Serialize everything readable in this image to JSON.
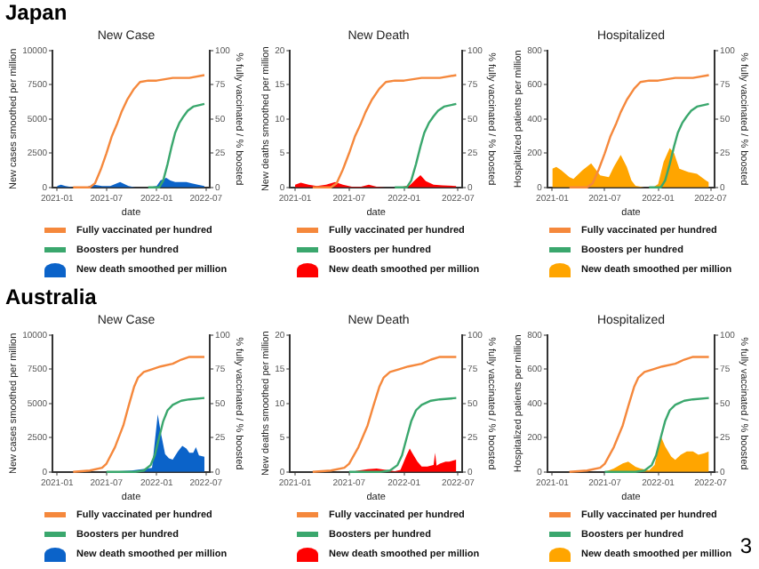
{
  "chart_data": [
    {
      "type": "area",
      "title": "New Case",
      "xlabel": "date",
      "ylabel": "New cases smoothed per million",
      "y2label": "% fully vaccinated / % boosted",
      "annotations": [
        "Japan"
      ],
      "xlim": [
        "2020-12-15",
        "2022-07-15"
      ],
      "xticks": [
        "2021-01",
        "2021-07",
        "2022-01",
        "2022-07"
      ],
      "ylim": [
        0,
        10000
      ],
      "yticks": [
        0,
        2500,
        5000,
        7500,
        10000
      ],
      "y2lim": [
        0,
        100
      ],
      "y2ticks": [
        0,
        25,
        50,
        75,
        100
      ],
      "legend": "bottom",
      "marker": "none",
      "series": [
        {
          "name": "Fully vaccinated per hundred",
          "type": "line",
          "axis": "y2",
          "color": "#f5883c",
          "x": [
            "2021-03-01",
            "2021-05-01",
            "2021-05-20",
            "2021-06-10",
            "2021-07-01",
            "2021-07-20",
            "2021-08-10",
            "2021-08-25",
            "2021-09-15",
            "2021-10-10",
            "2021-11-01",
            "2021-12-01",
            "2022-01-01",
            "2022-03-01",
            "2022-05-01",
            "2022-06-25"
          ],
          "values": [
            0,
            0,
            3,
            13,
            25,
            37,
            47,
            55,
            64,
            72,
            77,
            78,
            78,
            80,
            80,
            82
          ]
        },
        {
          "name": "Boosters per hundred",
          "type": "line",
          "axis": "y2",
          "color": "#3aa76d",
          "x": [
            "2021-12-01",
            "2022-01-10",
            "2022-01-25",
            "2022-02-10",
            "2022-02-25",
            "2022-03-10",
            "2022-03-25",
            "2022-04-10",
            "2022-04-25",
            "2022-05-15",
            "2022-06-25"
          ],
          "values": [
            0,
            0,
            5,
            17,
            30,
            40,
            47,
            52,
            56,
            59,
            61
          ]
        },
        {
          "name": "New death smoothed per million",
          "color": "#0b63c9",
          "x": [
            "2021-01-01",
            "2021-01-15",
            "2021-02-01",
            "2021-03-01",
            "2021-04-15",
            "2021-05-15",
            "2021-06-15",
            "2021-07-15",
            "2021-08-20",
            "2021-09-20",
            "2021-10-15",
            "2021-12-01",
            "2022-01-01",
            "2022-01-15",
            "2022-02-05",
            "2022-02-20",
            "2022-03-10",
            "2022-04-01",
            "2022-04-20",
            "2022-05-10",
            "2022-06-01",
            "2022-06-25"
          ],
          "values": [
            100,
            200,
            100,
            0,
            0,
            200,
            100,
            100,
            400,
            100,
            0,
            0,
            100,
            500,
            700,
            500,
            400,
            400,
            400,
            300,
            200,
            100
          ]
        }
      ]
    },
    {
      "type": "area",
      "title": "New Death",
      "xlabel": "date",
      "ylabel": "New deaths smoothed per million",
      "y2label": "% fully vaccinated / % boosted",
      "xlim": [
        "2020-12-15",
        "2022-07-15"
      ],
      "xticks": [
        "2021-01",
        "2021-07",
        "2022-01",
        "2022-07"
      ],
      "ylim": [
        0,
        20
      ],
      "yticks": [
        0,
        5,
        10,
        15,
        20
      ],
      "y2lim": [
        0,
        100
      ],
      "y2ticks": [
        0,
        25,
        50,
        75,
        100
      ],
      "legend": "bottom",
      "marker": "none",
      "series": [
        {
          "name": "Fully vaccinated per hundred",
          "type": "line",
          "axis": "y2",
          "color": "#f5883c",
          "x": [
            "2021-03-01",
            "2021-05-01",
            "2021-05-20",
            "2021-06-10",
            "2021-07-01",
            "2021-07-20",
            "2021-08-10",
            "2021-08-25",
            "2021-09-15",
            "2021-10-10",
            "2021-11-01",
            "2021-12-01",
            "2022-01-01",
            "2022-03-01",
            "2022-05-01",
            "2022-06-25"
          ],
          "values": [
            0,
            0,
            3,
            13,
            25,
            37,
            47,
            55,
            64,
            72,
            77,
            78,
            78,
            80,
            80,
            82
          ]
        },
        {
          "name": "Boosters per hundred",
          "type": "line",
          "axis": "y2",
          "color": "#3aa76d",
          "x": [
            "2021-12-01",
            "2022-01-10",
            "2022-01-25",
            "2022-02-10",
            "2022-02-25",
            "2022-03-10",
            "2022-03-25",
            "2022-04-10",
            "2022-04-25",
            "2022-05-15",
            "2022-06-25"
          ],
          "values": [
            0,
            0,
            5,
            17,
            30,
            40,
            47,
            52,
            56,
            59,
            61
          ]
        },
        {
          "name": "New death smoothed per million",
          "color": "#ff0000",
          "x": [
            "2021-01-01",
            "2021-01-20",
            "2021-02-15",
            "2021-03-15",
            "2021-04-15",
            "2021-05-15",
            "2021-06-10",
            "2021-07-10",
            "2021-08-10",
            "2021-09-05",
            "2021-10-01",
            "2021-11-01",
            "2021-12-15",
            "2022-01-20",
            "2022-02-10",
            "2022-02-25",
            "2022-03-15",
            "2022-04-10",
            "2022-05-10",
            "2022-06-25"
          ],
          "values": [
            0.4,
            0.7,
            0.4,
            0.2,
            0.4,
            0.8,
            0.4,
            0.1,
            0.1,
            0.4,
            0.1,
            0,
            0,
            0.3,
            1.2,
            1.8,
            0.9,
            0.4,
            0.3,
            0.2
          ]
        }
      ]
    },
    {
      "type": "area",
      "title": "Hospitalized",
      "xlabel": "date",
      "ylabel": "Hospitalized patients per million",
      "y2label": "% fully vaccinated / % boosted",
      "xlim": [
        "2020-12-15",
        "2022-07-15"
      ],
      "xticks": [
        "2021-01",
        "2021-07",
        "2022-01",
        "2022-07"
      ],
      "ylim": [
        0,
        800
      ],
      "yticks": [
        0,
        200,
        400,
        600,
        800
      ],
      "y2lim": [
        0,
        100
      ],
      "y2ticks": [
        0,
        25,
        50,
        75,
        100
      ],
      "legend": "bottom",
      "marker": "none",
      "series": [
        {
          "name": "Fully vaccinated per hundred",
          "type": "line",
          "axis": "y2",
          "color": "#f5883c",
          "x": [
            "2021-03-01",
            "2021-05-01",
            "2021-05-20",
            "2021-06-10",
            "2021-07-01",
            "2021-07-20",
            "2021-08-10",
            "2021-08-25",
            "2021-09-15",
            "2021-10-10",
            "2021-11-01",
            "2021-12-01",
            "2022-01-01",
            "2022-03-01",
            "2022-05-01",
            "2022-06-25"
          ],
          "values": [
            0,
            0,
            3,
            13,
            25,
            37,
            47,
            55,
            64,
            72,
            77,
            78,
            78,
            80,
            80,
            82
          ]
        },
        {
          "name": "Boosters per hundred",
          "type": "line",
          "axis": "y2",
          "color": "#3aa76d",
          "x": [
            "2021-12-01",
            "2022-01-10",
            "2022-01-25",
            "2022-02-10",
            "2022-02-25",
            "2022-03-10",
            "2022-03-25",
            "2022-04-10",
            "2022-04-25",
            "2022-05-15",
            "2022-06-25"
          ],
          "values": [
            0,
            0,
            5,
            17,
            30,
            40,
            47,
            52,
            56,
            59,
            61
          ]
        },
        {
          "name": "New death smoothed per million",
          "color": "#ffa500",
          "x": [
            "2021-01-01",
            "2021-01-15",
            "2021-02-01",
            "2021-03-01",
            "2021-03-15",
            "2021-04-15",
            "2021-05-15",
            "2021-06-15",
            "2021-07-15",
            "2021-08-01",
            "2021-08-25",
            "2021-09-15",
            "2021-10-01",
            "2021-10-15",
            "2021-11-15",
            "2021-12-15",
            "2022-01-01",
            "2022-01-20",
            "2022-02-10",
            "2022-02-25",
            "2022-03-15",
            "2022-04-15",
            "2022-05-15",
            "2022-06-15",
            "2022-06-25"
          ],
          "values": [
            110,
            120,
            100,
            60,
            50,
            100,
            140,
            70,
            60,
            120,
            190,
            120,
            40,
            10,
            0,
            0,
            20,
            150,
            230,
            200,
            110,
            90,
            80,
            40,
            30
          ]
        }
      ]
    },
    {
      "type": "area",
      "title": "New Case",
      "xlabel": "date",
      "ylabel": "New cases smoothed per million",
      "y2label": "% fully vaccinated / % boosted",
      "annotations": [
        "Australia"
      ],
      "xlim": [
        "2020-12-15",
        "2022-07-15"
      ],
      "xticks": [
        "2021-01",
        "2021-07",
        "2022-01",
        "2022-07"
      ],
      "ylim": [
        0,
        10000
      ],
      "yticks": [
        0,
        2500,
        5000,
        7500,
        10000
      ],
      "y2lim": [
        0,
        100
      ],
      "y2ticks": [
        0,
        25,
        50,
        75,
        100
      ],
      "legend": "bottom",
      "marker": "none",
      "series": [
        {
          "name": "Fully vaccinated per hundred",
          "type": "line",
          "axis": "y2",
          "color": "#f5883c",
          "x": [
            "2021-03-01",
            "2021-05-01",
            "2021-06-15",
            "2021-07-01",
            "2021-08-01",
            "2021-09-01",
            "2021-09-20",
            "2021-10-10",
            "2021-10-25",
            "2021-11-15",
            "2021-12-15",
            "2022-01-15",
            "2022-03-01",
            "2022-04-01",
            "2022-05-01",
            "2022-06-25"
          ],
          "values": [
            0,
            1,
            3,
            6,
            18,
            34,
            48,
            62,
            69,
            73,
            75,
            77,
            79,
            82,
            84,
            84
          ]
        },
        {
          "name": "Boosters per hundred",
          "type": "line",
          "axis": "y2",
          "color": "#3aa76d",
          "x": [
            "2021-07-01",
            "2021-10-15",
            "2021-11-15",
            "2021-12-10",
            "2021-12-25",
            "2022-01-10",
            "2022-01-25",
            "2022-02-10",
            "2022-03-01",
            "2022-04-01",
            "2022-05-01",
            "2022-06-25"
          ],
          "values": [
            0,
            0,
            1,
            5,
            12,
            25,
            37,
            45,
            49,
            52,
            53,
            54
          ]
        },
        {
          "name": "New death smoothed per million",
          "color": "#0b63c9",
          "x": [
            "2021-07-01",
            "2021-10-01",
            "2021-12-15",
            "2022-01-05",
            "2022-01-15",
            "2022-01-25",
            "2022-02-01",
            "2022-02-15",
            "2022-03-01",
            "2022-03-20",
            "2022-04-05",
            "2022-04-20",
            "2022-05-01",
            "2022-05-15",
            "2022-05-25",
            "2022-06-05",
            "2022-06-25"
          ],
          "values": [
            0,
            100,
            300,
            4200,
            3000,
            2000,
            1300,
            1000,
            900,
            1500,
            1900,
            1700,
            1400,
            1400,
            1800,
            1200,
            1100
          ]
        }
      ]
    },
    {
      "type": "area",
      "title": "New Death",
      "xlabel": "date",
      "ylabel": "New deaths smoothed per million",
      "y2label": "% fully vaccinated / % boosted",
      "xlim": [
        "2020-12-15",
        "2022-07-15"
      ],
      "xticks": [
        "2021-01",
        "2021-07",
        "2022-01",
        "2022-07"
      ],
      "ylim": [
        0,
        20
      ],
      "yticks": [
        0,
        5,
        10,
        15,
        20
      ],
      "y2lim": [
        0,
        100
      ],
      "y2ticks": [
        0,
        25,
        50,
        75,
        100
      ],
      "legend": "bottom",
      "marker": "none",
      "series": [
        {
          "name": "Fully vaccinated per hundred",
          "type": "line",
          "axis": "y2",
          "color": "#f5883c",
          "x": [
            "2021-03-01",
            "2021-05-01",
            "2021-06-15",
            "2021-07-01",
            "2021-08-01",
            "2021-09-01",
            "2021-09-20",
            "2021-10-10",
            "2021-10-25",
            "2021-11-15",
            "2021-12-15",
            "2022-01-15",
            "2022-03-01",
            "2022-04-01",
            "2022-05-01",
            "2022-06-25"
          ],
          "values": [
            0,
            1,
            3,
            6,
            18,
            34,
            48,
            62,
            69,
            73,
            75,
            77,
            79,
            82,
            84,
            84
          ]
        },
        {
          "name": "Boosters per hundred",
          "type": "line",
          "axis": "y2",
          "color": "#3aa76d",
          "x": [
            "2021-07-01",
            "2021-10-15",
            "2021-11-15",
            "2021-12-10",
            "2021-12-25",
            "2022-01-10",
            "2022-01-25",
            "2022-02-10",
            "2022-03-01",
            "2022-04-01",
            "2022-05-01",
            "2022-06-25"
          ],
          "values": [
            0,
            0,
            1,
            5,
            12,
            25,
            37,
            45,
            49,
            52,
            53,
            54
          ]
        },
        {
          "name": "New death smoothed per million",
          "color": "#ff0000",
          "x": [
            "2021-07-10",
            "2021-08-01",
            "2021-09-01",
            "2021-10-01",
            "2021-11-01",
            "2021-12-01",
            "2021-12-20",
            "2022-01-10",
            "2022-01-20",
            "2022-02-01",
            "2022-02-15",
            "2022-03-01",
            "2022-03-20",
            "2022-04-10",
            "2022-04-15",
            "2022-04-20",
            "2022-05-01",
            "2022-05-20",
            "2022-06-01",
            "2022-06-25"
          ],
          "values": [
            0,
            0.2,
            0.4,
            0.5,
            0.3,
            0.1,
            0.3,
            2.5,
            3.4,
            2.5,
            1.5,
            0.8,
            0.8,
            1.0,
            2.8,
            0.9,
            1.2,
            1.5,
            1.5,
            1.8
          ]
        }
      ]
    },
    {
      "type": "area",
      "title": "Hospitalized",
      "xlabel": "date",
      "ylabel": "Hospitalized patients per million",
      "y2label": "% fully vaccinated / % boosted",
      "annotations": [
        "3"
      ],
      "xlim": [
        "2020-12-15",
        "2022-07-15"
      ],
      "xticks": [
        "2021-01",
        "2021-07",
        "2022-01",
        "2022-07"
      ],
      "ylim": [
        0,
        800
      ],
      "yticks": [
        0,
        200,
        400,
        600,
        800
      ],
      "y2lim": [
        0,
        100
      ],
      "y2ticks": [
        0,
        25,
        50,
        75,
        100
      ],
      "legend": "bottom",
      "marker": "none",
      "series": [
        {
          "name": "Fully vaccinated per hundred",
          "type": "line",
          "axis": "y2",
          "color": "#f5883c",
          "x": [
            "2021-03-01",
            "2021-05-01",
            "2021-06-15",
            "2021-07-01",
            "2021-08-01",
            "2021-09-01",
            "2021-09-20",
            "2021-10-10",
            "2021-10-25",
            "2021-11-15",
            "2021-12-15",
            "2022-01-15",
            "2022-03-01",
            "2022-04-01",
            "2022-05-01",
            "2022-06-25"
          ],
          "values": [
            0,
            1,
            3,
            6,
            18,
            34,
            48,
            62,
            69,
            73,
            75,
            77,
            79,
            82,
            84,
            84
          ]
        },
        {
          "name": "Boosters per hundred",
          "type": "line",
          "axis": "y2",
          "color": "#3aa76d",
          "x": [
            "2021-07-01",
            "2021-10-15",
            "2021-11-15",
            "2021-12-10",
            "2021-12-25",
            "2022-01-10",
            "2022-01-25",
            "2022-02-10",
            "2022-03-01",
            "2022-04-01",
            "2022-05-01",
            "2022-06-25"
          ],
          "values": [
            0,
            0,
            1,
            5,
            12,
            25,
            37,
            45,
            49,
            52,
            53,
            54
          ]
        },
        {
          "name": "New death smoothed per million",
          "color": "#ffa500",
          "x": [
            "2021-07-01",
            "2021-08-01",
            "2021-09-01",
            "2021-09-20",
            "2021-10-15",
            "2021-11-01",
            "2021-12-01",
            "2021-12-20",
            "2022-01-10",
            "2022-01-25",
            "2022-02-15",
            "2022-03-01",
            "2022-03-20",
            "2022-04-10",
            "2022-05-01",
            "2022-05-20",
            "2022-06-10",
            "2022-06-25"
          ],
          "values": [
            0,
            20,
            50,
            60,
            30,
            20,
            10,
            40,
            210,
            150,
            90,
            70,
            100,
            120,
            120,
            100,
            110,
            120
          ]
        }
      ]
    }
  ]
}
